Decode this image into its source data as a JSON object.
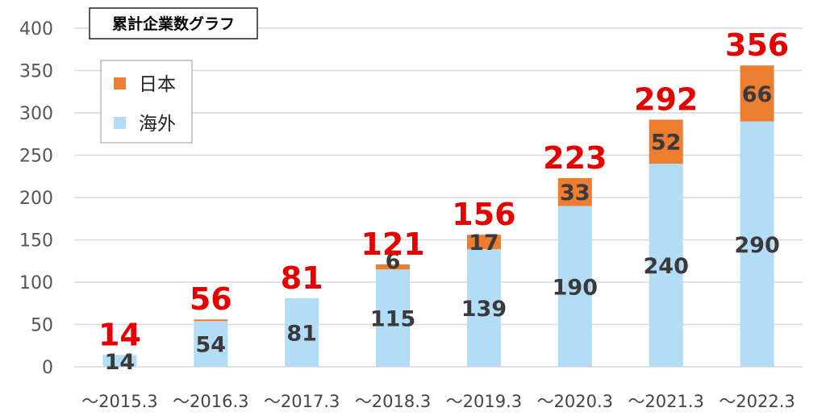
{
  "chart_data": {
    "type": "bar",
    "stacked": true,
    "title": "累計企業数グラフ",
    "categories": [
      "～2015.3",
      "～2016.3",
      "～2017.3",
      "～2018.3",
      "～2019.3",
      "～2020.3",
      "～2021.3",
      "～2022.3"
    ],
    "series": [
      {
        "name": "海外",
        "color": "#b3dcf7",
        "values": [
          14,
          54,
          81,
          115,
          139,
          190,
          240,
          290
        ]
      },
      {
        "name": "日本",
        "color": "#ed7d31",
        "values": [
          0,
          2,
          0,
          6,
          17,
          33,
          52,
          66
        ]
      }
    ],
    "segment_labels": {
      "海外": [
        "14",
        "54",
        "81",
        "115",
        "139",
        "190",
        "240",
        "290"
      ],
      "日本": [
        "",
        "",
        "",
        "6",
        "17",
        "33",
        "52",
        "66"
      ]
    },
    "totals": [
      14,
      56,
      81,
      121,
      156,
      223,
      292,
      356
    ],
    "ylim": [
      0,
      400
    ],
    "yticks": [
      0,
      50,
      100,
      150,
      200,
      250,
      300,
      350,
      400
    ],
    "grid": true,
    "legend_position": "top-left",
    "xlabel": "",
    "ylabel": ""
  }
}
